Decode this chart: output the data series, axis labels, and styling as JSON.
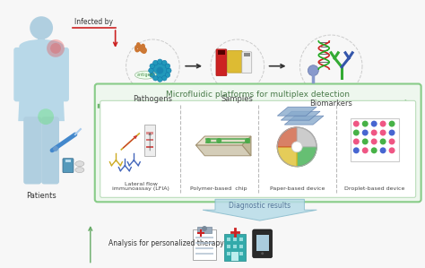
{
  "bg_color": "#f7f7f7",
  "top_arrow_color": "#cc2222",
  "green_arrow_color": "#5aaa5a",
  "green_box_border": "#88cc88",
  "green_box_fill": "#eef7ee",
  "inner_box_border": "#bbddbb",
  "blue_arrow_fill": "#b8dce8",
  "blue_arrow_stroke": "#88bbcc",
  "label_color": "#444444",
  "text_color": "#333333",
  "patient_color": "#b0cfe0",
  "gown_color": "#b8d8e8",
  "top_labels": [
    "Pathogens",
    "Samples",
    "Biomarkers"
  ],
  "platform_labels": [
    "Lateral flow\nimmunoassay (LFIA)",
    "Polymer-based  chip",
    "Paper-based device",
    "Droplet-based device"
  ],
  "infected_by": "Infected by",
  "microfluidic_title": "Microfluidic platforms for multiplex detection",
  "diagnostic_title": "Diagnostic results",
  "therapy_label": "Analysis for personalized therapy",
  "patients_label": "Patients",
  "green_title_color": "#4a7a4a",
  "diag_text_color": "#557799",
  "dot_grid": [
    [
      "#ee4477",
      "#33aa33",
      "#3355cc",
      "#ee4477",
      "#33aa33"
    ],
    [
      "#33aa33",
      "#3355cc",
      "#ee4477",
      "#ee4477",
      "#3355cc"
    ],
    [
      "#ee4477",
      "#33aa33",
      "#ee4477",
      "#33aa33",
      "#ee4477"
    ],
    [
      "#3355cc",
      "#ee4477",
      "#33aa33",
      "#3355cc",
      "#ee4477"
    ]
  ]
}
